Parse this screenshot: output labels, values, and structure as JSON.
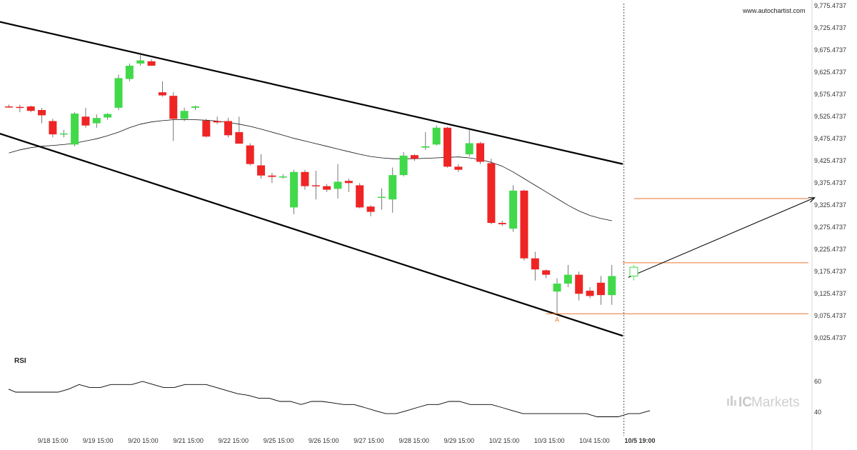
{
  "watermark": {
    "site": "www.autochartist.com",
    "brand_ic": "IC",
    "brand_markets": "Markets"
  },
  "colors": {
    "up": "#41d94a",
    "down": "#ef2525",
    "level": "#e8772e",
    "trend": "#000000",
    "ma": "#111111"
  },
  "chart_data": {
    "type": "candlestick",
    "y_tick_labels": [
      "9,775.4737",
      "9,725.4737",
      "9,675.4737",
      "9,625.4737",
      "9,575.4737",
      "9,525.4737",
      "9,475.4737",
      "9,425.4737",
      "9,375.4737",
      "9,325.4737",
      "9,275.4737",
      "9,225.4737",
      "9,175.4737",
      "9,125.4737",
      "9,075.4737",
      "9,025.4737"
    ],
    "x_tick_labels": [
      "9/18 15:00",
      "9/19 15:00",
      "9/20 15:00",
      "9/21 15:00",
      "9/22 15:00",
      "9/25 15:00",
      "9/26 15:00",
      "9/27 15:00",
      "9/28 15:00",
      "9/29 15:00",
      "10/2 15:00",
      "10/3 15:00",
      "10/4 15:00",
      "10/5 19:00"
    ],
    "ylim": [
      9000,
      9780
    ],
    "candles": [
      {
        "o": 9548,
        "h": 9552,
        "l": 9545,
        "c": 9547
      },
      {
        "o": 9547,
        "h": 9552,
        "l": 9535,
        "c": 9545
      },
      {
        "o": 9548,
        "h": 9550,
        "l": 9535,
        "c": 9538
      },
      {
        "o": 9540,
        "h": 9545,
        "l": 9510,
        "c": 9528
      },
      {
        "o": 9515,
        "h": 9520,
        "l": 9478,
        "c": 9485
      },
      {
        "o": 9485,
        "h": 9495,
        "l": 9478,
        "c": 9487
      },
      {
        "o": 9462,
        "h": 9535,
        "l": 9458,
        "c": 9532
      },
      {
        "o": 9525,
        "h": 9545,
        "l": 9500,
        "c": 9505
      },
      {
        "o": 9510,
        "h": 9530,
        "l": 9500,
        "c": 9522
      },
      {
        "o": 9523,
        "h": 9533,
        "l": 9518,
        "c": 9531
      },
      {
        "o": 9545,
        "h": 9620,
        "l": 9540,
        "c": 9612
      },
      {
        "o": 9610,
        "h": 9645,
        "l": 9605,
        "c": 9640
      },
      {
        "o": 9645,
        "h": 9670,
        "l": 9640,
        "c": 9652
      },
      {
        "o": 9650,
        "h": 9655,
        "l": 9640,
        "c": 9640
      },
      {
        "o": 9580,
        "h": 9605,
        "l": 9570,
        "c": 9573
      },
      {
        "o": 9572,
        "h": 9580,
        "l": 9470,
        "c": 9520
      },
      {
        "o": 9520,
        "h": 9545,
        "l": 9515,
        "c": 9538
      },
      {
        "o": 9545,
        "h": 9550,
        "l": 9540,
        "c": 9548
      },
      {
        "o": 9516,
        "h": 9520,
        "l": 9478,
        "c": 9480
      },
      {
        "o": 9515,
        "h": 9525,
        "l": 9508,
        "c": 9512
      },
      {
        "o": 9515,
        "h": 9522,
        "l": 9478,
        "c": 9483
      },
      {
        "o": 9490,
        "h": 9525,
        "l": 9470,
        "c": 9464
      },
      {
        "o": 9460,
        "h": 9465,
        "l": 9415,
        "c": 9418
      },
      {
        "o": 9415,
        "h": 9440,
        "l": 9385,
        "c": 9392
      },
      {
        "o": 9392,
        "h": 9398,
        "l": 9375,
        "c": 9389
      },
      {
        "o": 9390,
        "h": 9395,
        "l": 9385,
        "c": 9390
      },
      {
        "o": 9320,
        "h": 9405,
        "l": 9305,
        "c": 9400
      },
      {
        "o": 9400,
        "h": 9405,
        "l": 9360,
        "c": 9368
      },
      {
        "o": 9370,
        "h": 9403,
        "l": 9338,
        "c": 9368
      },
      {
        "o": 9368,
        "h": 9373,
        "l": 9355,
        "c": 9360
      },
      {
        "o": 9362,
        "h": 9418,
        "l": 9340,
        "c": 9378
      },
      {
        "o": 9380,
        "h": 9385,
        "l": 9355,
        "c": 9375
      },
      {
        "o": 9370,
        "h": 9375,
        "l": 9318,
        "c": 9320
      },
      {
        "o": 9322,
        "h": 9325,
        "l": 9300,
        "c": 9310
      },
      {
        "o": 9342,
        "h": 9363,
        "l": 9315,
        "c": 9344
      },
      {
        "o": 9338,
        "h": 9410,
        "l": 9308,
        "c": 9393
      },
      {
        "o": 9393,
        "h": 9445,
        "l": 9390,
        "c": 9437
      },
      {
        "o": 9438,
        "h": 9440,
        "l": 9425,
        "c": 9430
      },
      {
        "o": 9455,
        "h": 9490,
        "l": 9450,
        "c": 9458
      },
      {
        "o": 9462,
        "h": 9505,
        "l": 9460,
        "c": 9500
      },
      {
        "o": 9500,
        "h": 9502,
        "l": 9410,
        "c": 9412
      },
      {
        "o": 9412,
        "h": 9418,
        "l": 9400,
        "c": 9405
      },
      {
        "o": 9440,
        "h": 9495,
        "l": 9435,
        "c": 9465
      },
      {
        "o": 9465,
        "h": 9468,
        "l": 9418,
        "c": 9423
      },
      {
        "o": 9420,
        "h": 9430,
        "l": 9282,
        "c": 9285
      },
      {
        "o": 9285,
        "h": 9290,
        "l": 9278,
        "c": 9282
      },
      {
        "o": 9272,
        "h": 9370,
        "l": 9265,
        "c": 9358
      },
      {
        "o": 9358,
        "h": 9360,
        "l": 9200,
        "c": 9205
      },
      {
        "o": 9205,
        "h": 9220,
        "l": 9155,
        "c": 9180
      },
      {
        "o": 9178,
        "h": 9180,
        "l": 9160,
        "c": 9168
      },
      {
        "o": 9130,
        "h": 9160,
        "l": 9080,
        "c": 9148
      },
      {
        "o": 9148,
        "h": 9190,
        "l": 9140,
        "c": 9168
      },
      {
        "o": 9168,
        "h": 9175,
        "l": 9110,
        "c": 9125
      },
      {
        "o": 9132,
        "h": 9140,
        "l": 9115,
        "c": 9120
      },
      {
        "o": 9150,
        "h": 9165,
        "l": 9100,
        "c": 9122
      },
      {
        "o": 9122,
        "h": 9190,
        "l": 9100,
        "c": 9165
      }
    ],
    "current_candle": {
      "o": 9165,
      "h": 9190,
      "l": 9155,
      "c": 9185
    },
    "moving_average": [
      9443,
      9450,
      9455,
      9458,
      9460,
      9462,
      9465,
      9470,
      9475,
      9482,
      9490,
      9500,
      9508,
      9513,
      9516,
      9518,
      9518,
      9518,
      9517,
      9515,
      9512,
      9508,
      9503,
      9497,
      9490,
      9483,
      9476,
      9470,
      9464,
      9458,
      9452,
      9446,
      9440,
      9435,
      9432,
      9430,
      9430,
      9430,
      9431,
      9432,
      9433,
      9434,
      9432,
      9428,
      9422,
      9413,
      9400,
      9385,
      9370,
      9355,
      9340,
      9325,
      9312,
      9302,
      9295,
      9290
    ],
    "trend_lines": [
      {
        "name": "upper",
        "from": {
          "i": -1,
          "v": 9740
        },
        "to": {
          "i": 56,
          "v": 9418
        }
      },
      {
        "name": "lower",
        "from": {
          "i": -1,
          "v": 9488
        },
        "to": {
          "i": 56,
          "v": 9030
        }
      }
    ],
    "levels": [
      {
        "name": "projected_target",
        "v": 9340,
        "from_i": 57,
        "to_i": 74
      },
      {
        "name": "resistance",
        "v": 9195,
        "from_i": 56,
        "to_i": 78
      },
      {
        "name": "support",
        "v": 9080,
        "from_i": 49,
        "to_i": 78
      }
    ],
    "projection": {
      "from": {
        "i": 56.5,
        "v": 9162
      },
      "to": {
        "i": 73.5,
        "v": 9342
      }
    },
    "point_label": {
      "text": "A",
      "i": 50,
      "v": 9068
    },
    "now_index": 56,
    "rsi": {
      "title": "RSI",
      "tick_labels": [
        "60",
        "40"
      ],
      "ylim": [
        30,
        72
      ],
      "values": [
        55,
        53,
        53,
        53,
        53,
        53,
        55,
        58,
        56,
        56,
        58,
        58,
        58,
        60,
        58,
        56,
        56,
        58,
        58,
        58,
        56,
        54,
        52,
        51,
        49,
        49,
        47,
        47,
        45,
        47,
        47,
        46,
        45,
        45,
        43,
        41,
        39,
        39,
        41,
        43,
        45,
        45,
        47,
        47,
        45,
        45,
        45,
        43,
        41,
        39,
        39,
        39,
        39,
        39,
        39,
        39,
        37,
        37,
        37,
        39,
        39,
        41
      ]
    }
  }
}
